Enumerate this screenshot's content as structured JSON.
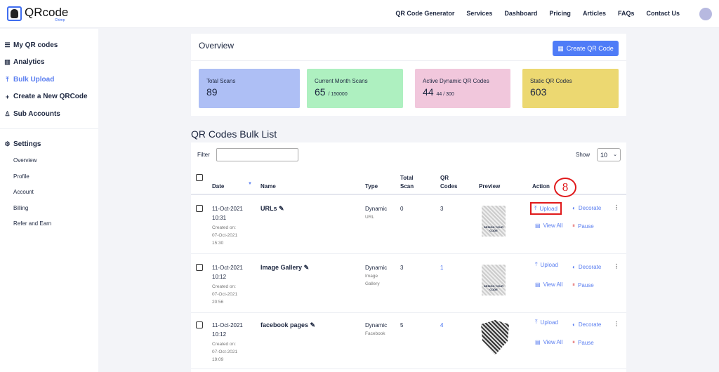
{
  "header": {
    "logo_text": "QRcode",
    "logo_sub": "Chimp",
    "nav": [
      "QR Code Generator",
      "Services",
      "Dashboard",
      "Pricing",
      "Articles",
      "FAQs",
      "Contact Us"
    ]
  },
  "sidebar": {
    "items": [
      {
        "label": "My QR codes",
        "icon": "list-icon"
      },
      {
        "label": "Analytics",
        "icon": "bar-chart-icon"
      },
      {
        "label": "Bulk Upload",
        "icon": "upload-icon",
        "active": true
      },
      {
        "label": "Create a New QRCode",
        "icon": "plus-icon"
      },
      {
        "label": "Sub Accounts",
        "icon": "user-icon"
      }
    ],
    "settings": "Settings",
    "sub": [
      "Overview",
      "Profile",
      "Account",
      "Billing",
      "Refer and Earn"
    ]
  },
  "overview": {
    "title": "Overview",
    "create_button": "Create QR Code",
    "stats": [
      {
        "label": "Total Scans",
        "value": "89",
        "sub": "",
        "color": "#aebff5"
      },
      {
        "label": "Current Month Scans",
        "value": "65",
        "sub": "/ 150000",
        "color": "#aef0c0"
      },
      {
        "label": "Active Dynamic QR Codes",
        "value": "44",
        "sub": "44 / 300",
        "color": "#f1c7dc"
      },
      {
        "label": "Static QR Codes",
        "value": "603",
        "sub": "",
        "color": "#ecd871"
      }
    ]
  },
  "list": {
    "title": "QR Codes Bulk List",
    "filter_label": "Filter",
    "filter_value": "",
    "show_label": "Show",
    "show_value": "10",
    "columns": [
      "Date",
      "Name",
      "Type",
      "Total Scan",
      "QR Codes",
      "Preview",
      "Action"
    ],
    "annotation": "8",
    "actions": {
      "upload": "Upload",
      "decorate": "Decorate",
      "view_all": "View All",
      "pause": "Pause"
    },
    "rows": [
      {
        "date": "11-Oct-2021",
        "time": "10:31",
        "created_label": "Created on:",
        "created_date": "07-Oct-2021",
        "created_time": "15:30",
        "name": "URLs",
        "type": "Dynamic",
        "subtype": "URL",
        "total_scan": "0",
        "qr_codes": "3",
        "preview_text": "DESIGN YOUR CODE"
      },
      {
        "date": "11-Oct-2021",
        "time": "10:12",
        "created_label": "Created on:",
        "created_date": "07-Oct-2021",
        "created_time": "20:56",
        "name": "Image Gallery",
        "type": "Dynamic",
        "subtype": "Image Gallery",
        "total_scan": "3",
        "qr_codes": "1",
        "preview_text": "DESIGN YOUR CODE"
      },
      {
        "date": "11-Oct-2021",
        "time": "10:12",
        "created_label": "Created on:",
        "created_date": "07-Oct-2021",
        "created_time": "19:09",
        "name": "facebook pages",
        "type": "Dynamic",
        "subtype": "Facebook",
        "total_scan": "5",
        "qr_codes": "4",
        "preview_text": ""
      }
    ]
  }
}
